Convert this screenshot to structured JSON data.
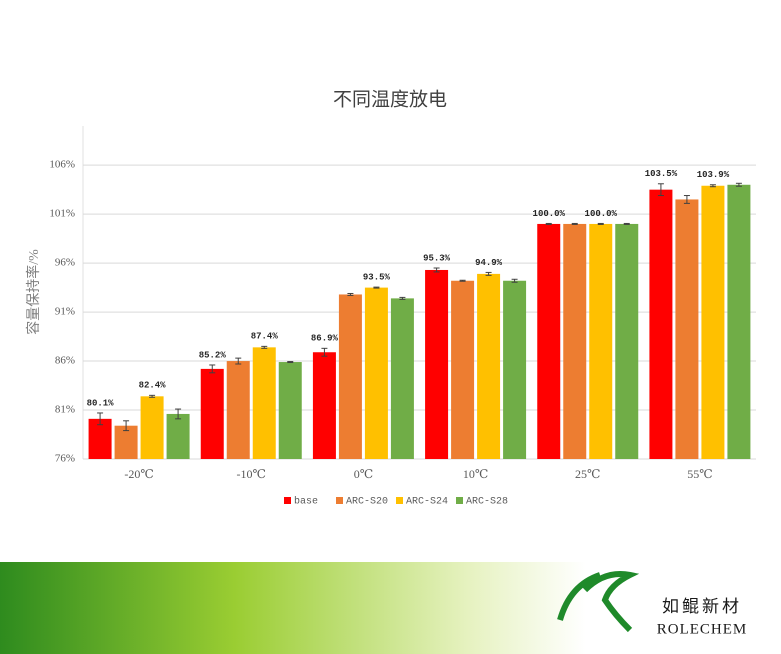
{
  "chart_data": {
    "type": "bar",
    "title": "不同温度放电",
    "y_label": "容量保持率/%",
    "categories": [
      "-20℃",
      "-10℃",
      "0℃",
      "10℃",
      "25℃",
      "55℃"
    ],
    "series": [
      {
        "name": "base",
        "color": "#ff0000",
        "values": [
          80.1,
          85.2,
          86.9,
          95.3,
          100.0,
          103.5
        ],
        "errors": [
          0.6,
          0.4,
          0.4,
          0.2,
          0.05,
          0.6
        ],
        "value_labels": [
          "80.1%",
          "85.2%",
          "86.9%",
          "95.3%",
          "100.0%",
          "103.5%"
        ]
      },
      {
        "name": "ARC-S20",
        "color": "#ed7d31",
        "values": [
          79.4,
          86.0,
          92.8,
          94.2,
          100.0,
          102.5
        ],
        "errors": [
          0.5,
          0.3,
          0.1,
          0.05,
          0.05,
          0.4
        ]
      },
      {
        "name": "ARC-S24",
        "color": "#ffc000",
        "values": [
          82.4,
          87.4,
          93.5,
          94.9,
          100.0,
          103.9
        ],
        "errors": [
          0.1,
          0.1,
          0.05,
          0.15,
          0.05,
          0.1
        ],
        "value_labels": [
          "82.4%",
          "87.4%",
          "93.5%",
          "94.9%",
          "100.0%",
          "103.9%"
        ]
      },
      {
        "name": "ARC-S28",
        "color": "#70ad47",
        "values": [
          80.6,
          85.9,
          92.4,
          94.2,
          100.0,
          104.0
        ],
        "errors": [
          0.5,
          0.05,
          0.1,
          0.15,
          0.05,
          0.15
        ]
      }
    ],
    "ylim": [
      76,
      110
    ],
    "yticks": [
      {
        "value": 76,
        "label": "76%"
      },
      {
        "value": 81,
        "label": "81%"
      },
      {
        "value": 86,
        "label": "86%"
      },
      {
        "value": 91,
        "label": "91%"
      },
      {
        "value": 96,
        "label": "96%"
      },
      {
        "value": 101,
        "label": "101%"
      },
      {
        "value": 106,
        "label": "106%"
      }
    ],
    "grid": true,
    "legend": "bottom"
  },
  "logo": {
    "name": "如鲲新材",
    "brand": "ROLECHEM"
  }
}
